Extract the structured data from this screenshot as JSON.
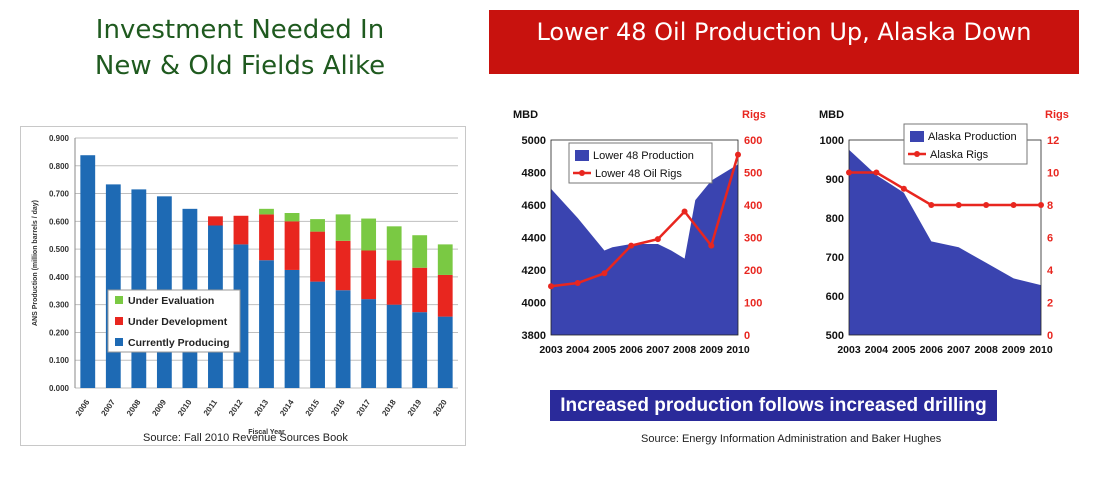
{
  "left_title_line1": "Investment Needed In",
  "left_title_line2": "New & Old Fields Alike",
  "banner_title": "Lower 48 Oil Production Up,  Alaska Down",
  "drilling_message": "Increased production follows increased drilling",
  "source_left": "Source: Fall 2010 Revenue Sources Book",
  "source_right": "Source: Energy Information Administration and Baker Hughes",
  "colors": {
    "green": "#7ac943",
    "red": "#e8261f",
    "blue": "#1e6ab4",
    "navy": "#3a44b0",
    "rigs": "#e8261f"
  },
  "chart_data": [
    {
      "type": "bar",
      "stacked": true,
      "title": "",
      "ylabel": "ANS Production (million barrels / day)",
      "xlabel": "Fiscal Year",
      "ylim": [
        0,
        0.9
      ],
      "yticks": [
        "0.000",
        "0.100",
        "0.200",
        "0.300",
        "0.400",
        "0.500",
        "0.600",
        "0.700",
        "0.800",
        "0.900"
      ],
      "categories": [
        "2006",
        "2007",
        "2008",
        "2009",
        "2010",
        "2011",
        "2012",
        "2013",
        "2014",
        "2015",
        "2016",
        "2017",
        "2018",
        "2019",
        "2020"
      ],
      "series": [
        {
          "name": "Currently Producing",
          "color": "#1e6ab4",
          "values": [
            0.838,
            0.733,
            0.715,
            0.69,
            0.645,
            0.585,
            0.517,
            0.46,
            0.425,
            0.383,
            0.352,
            0.32,
            0.3,
            0.273,
            0.257
          ]
        },
        {
          "name": "Under Development",
          "color": "#e8261f",
          "values": [
            0,
            0,
            0,
            0,
            0,
            0.033,
            0.103,
            0.165,
            0.175,
            0.18,
            0.178,
            0.175,
            0.16,
            0.16,
            0.15
          ]
        },
        {
          "name": "Under Evaluation",
          "color": "#7ac943",
          "values": [
            0,
            0,
            0,
            0,
            0,
            0,
            0,
            0.02,
            0.03,
            0.045,
            0.095,
            0.115,
            0.122,
            0.117,
            0.11
          ]
        }
      ],
      "legend": [
        "Under Evaluation",
        "Under Development",
        "Currently Producing"
      ],
      "legend_position": "center-left"
    },
    {
      "type": "area+line",
      "left_axis_label": "MBD",
      "right_axis_label": "Rigs",
      "x": [
        "2003",
        "2004",
        "2005",
        "2006",
        "2007",
        "2008",
        "2009",
        "2010"
      ],
      "ylim": [
        3800,
        5000
      ],
      "yticks": [
        "3800",
        "4000",
        "4200",
        "4400",
        "4600",
        "4800",
        "5000"
      ],
      "y2lim": [
        0,
        600
      ],
      "y2ticks": [
        "0",
        "100",
        "200",
        "300",
        "400",
        "500",
        "600"
      ],
      "area": {
        "name": "Lower 48 Production",
        "points": [
          [
            2003,
            4700
          ],
          [
            2004,
            4520
          ],
          [
            2005,
            4320
          ],
          [
            2005.3,
            4340
          ],
          [
            2006,
            4360
          ],
          [
            2007,
            4360
          ],
          [
            2007.5,
            4320
          ],
          [
            2008,
            4270
          ],
          [
            2008.4,
            4630
          ],
          [
            2009,
            4750
          ],
          [
            2010,
            4850
          ]
        ]
      },
      "line": {
        "name": "Lower 48 Oil Rigs",
        "points": [
          [
            2003,
            150
          ],
          [
            2004,
            160
          ],
          [
            2005,
            190
          ],
          [
            2006,
            275
          ],
          [
            2007,
            295
          ],
          [
            2008,
            380
          ],
          [
            2009,
            275
          ],
          [
            2010,
            555
          ]
        ]
      }
    },
    {
      "type": "area+line",
      "left_axis_label": "MBD",
      "right_axis_label": "Rigs",
      "x": [
        "2003",
        "2004",
        "2005",
        "2006",
        "2007",
        "2008",
        "2009",
        "2010"
      ],
      "ylim": [
        500,
        1000
      ],
      "yticks": [
        "500",
        "600",
        "700",
        "800",
        "900",
        "1000"
      ],
      "y2lim": [
        0,
        12
      ],
      "y2ticks": [
        "0",
        "2",
        "4",
        "6",
        "8",
        "10",
        "12"
      ],
      "area": {
        "name": "Alaska Production",
        "points": [
          [
            2003,
            975
          ],
          [
            2004,
            910
          ],
          [
            2005,
            865
          ],
          [
            2006,
            740
          ],
          [
            2007,
            725
          ],
          [
            2008,
            685
          ],
          [
            2009,
            645
          ],
          [
            2010,
            628
          ]
        ]
      },
      "line": {
        "name": "Alaska Rigs",
        "points": [
          [
            2003,
            10
          ],
          [
            2004,
            10
          ],
          [
            2005,
            9
          ],
          [
            2006,
            8
          ],
          [
            2007,
            8
          ],
          [
            2008,
            8
          ],
          [
            2009,
            8
          ],
          [
            2010,
            8
          ]
        ]
      }
    }
  ]
}
